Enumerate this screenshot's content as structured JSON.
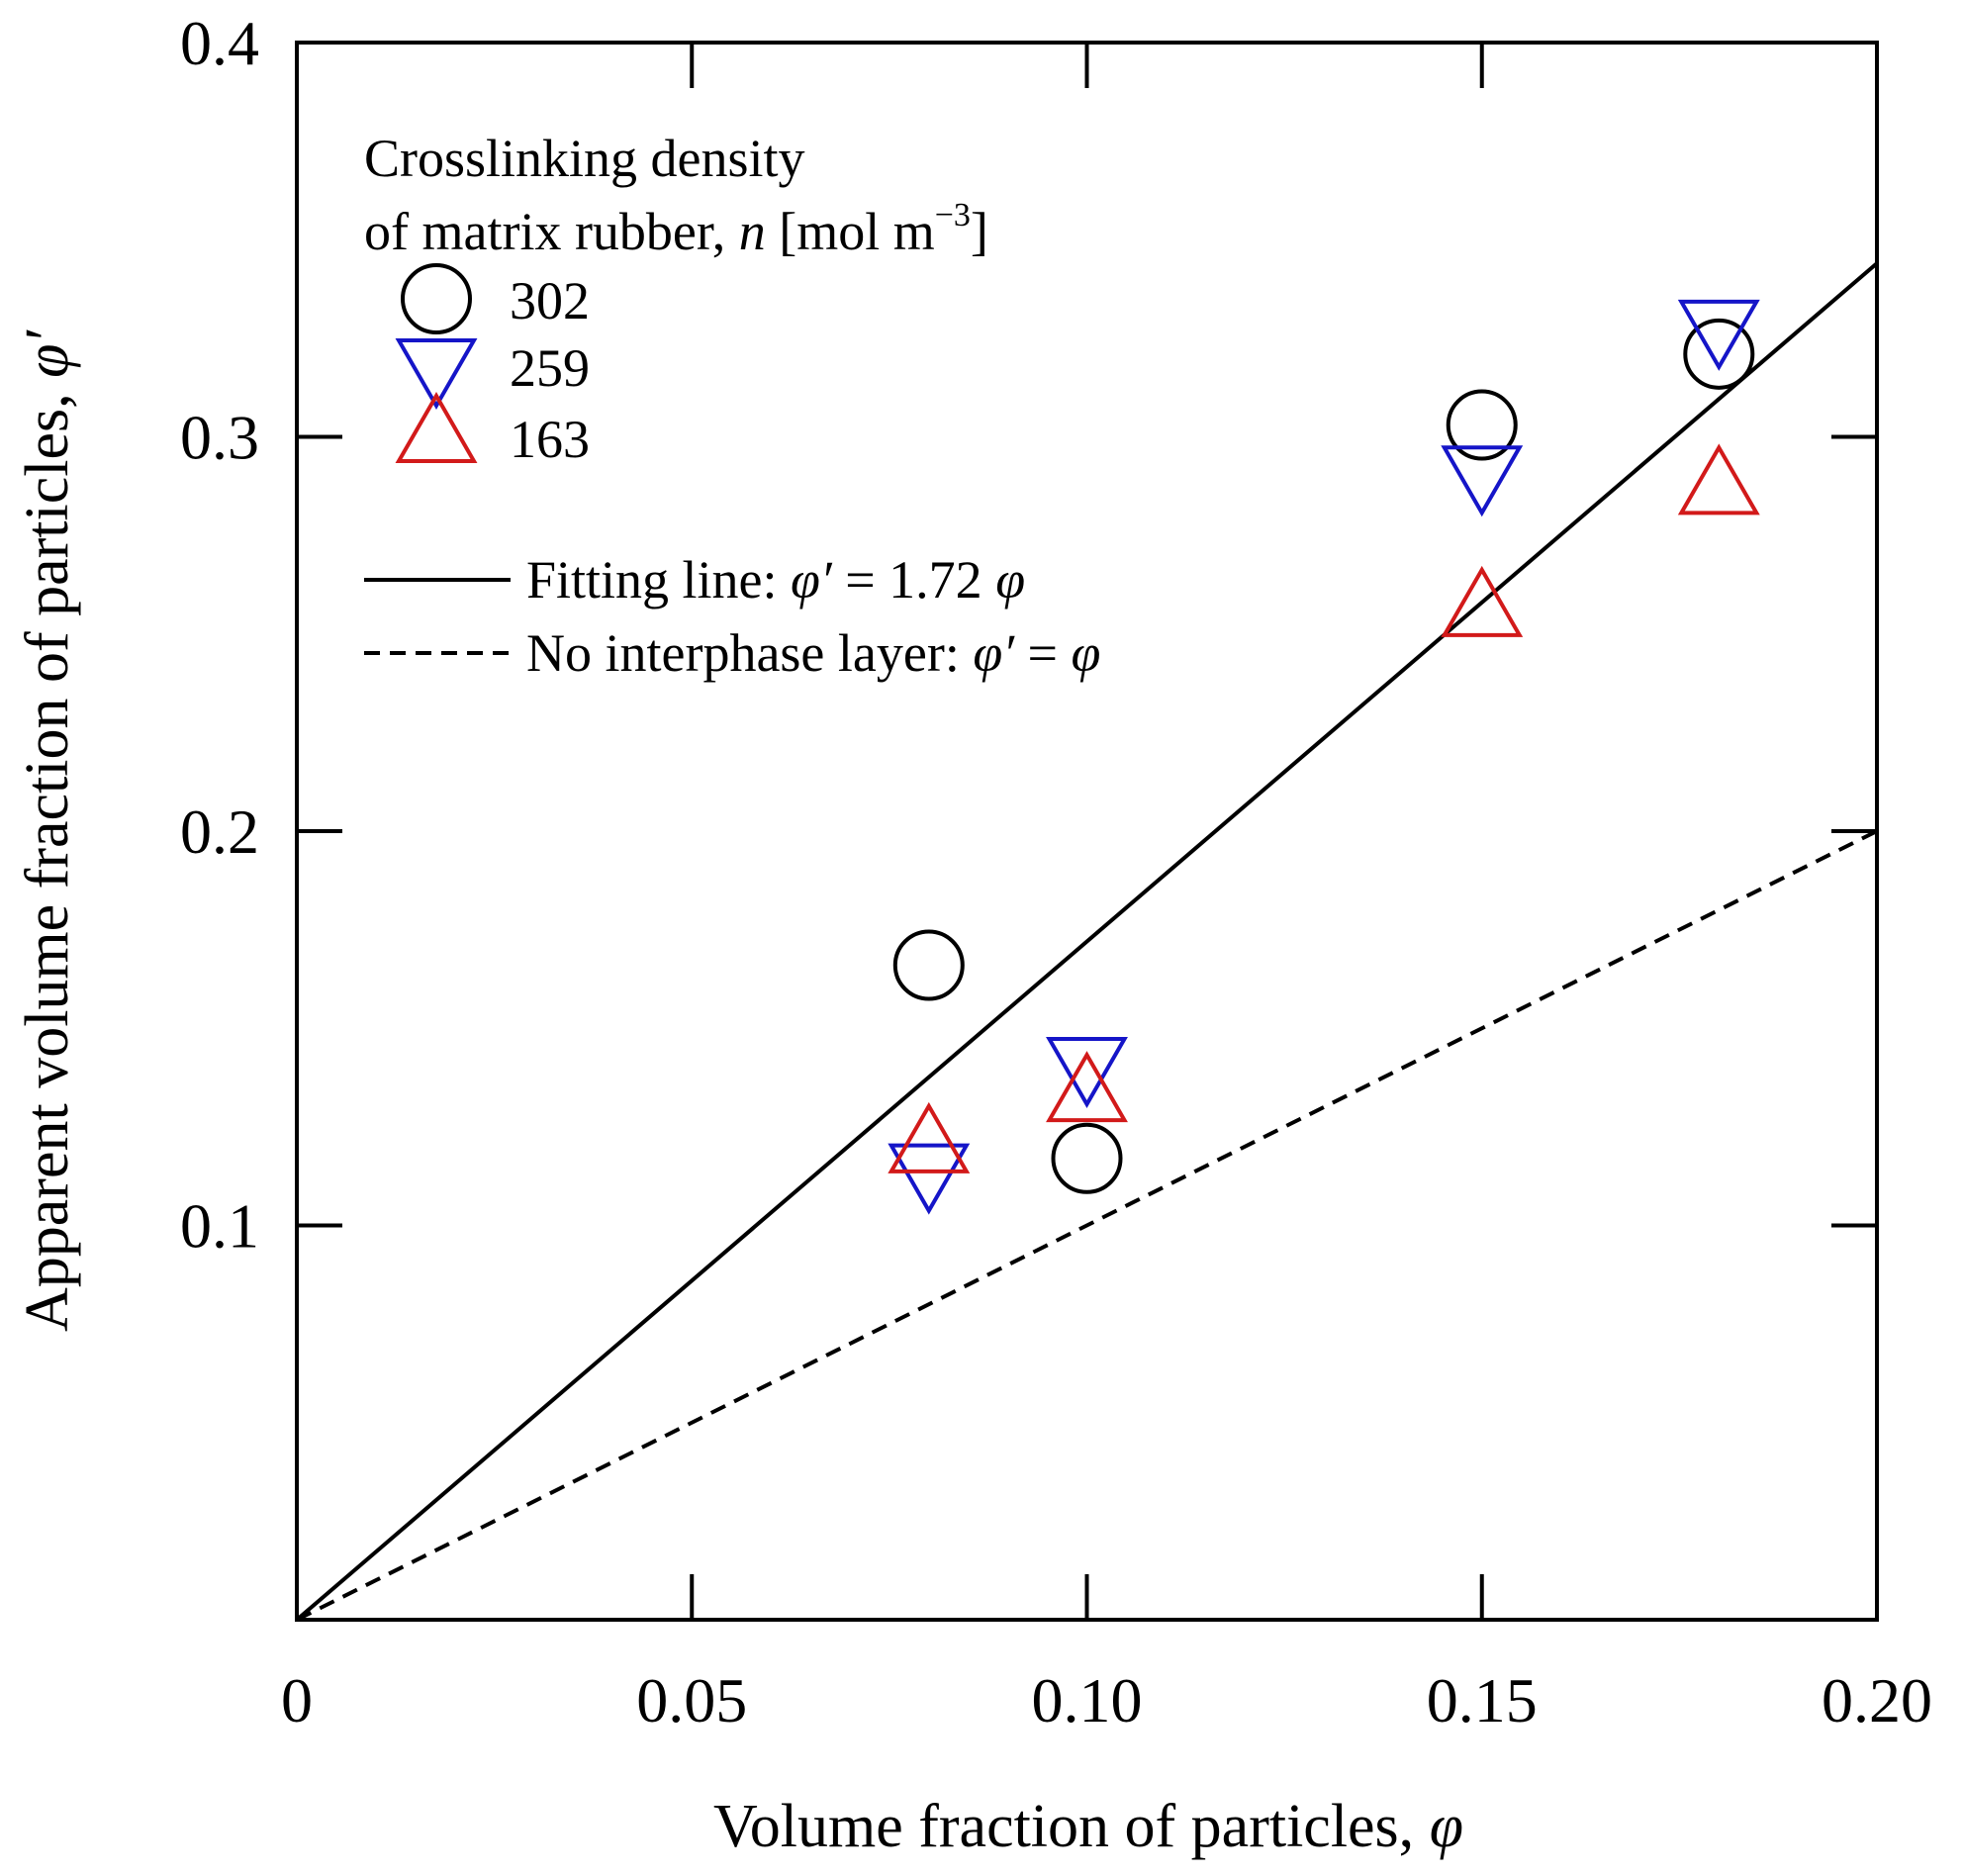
{
  "chart_data": {
    "type": "scatter",
    "xlabel": "Volume fraction of particles, ",
    "xlabel_symbol": "φ",
    "ylabel": "Apparent volume fraction of particles, ",
    "ylabel_symbol": "φ′",
    "xlim": [
      0,
      0.2
    ],
    "ylim": [
      0,
      0.4
    ],
    "x_ticks": [
      0,
      0.05,
      0.1,
      0.15,
      0.2
    ],
    "x_tick_labels": [
      "0",
      "0.05",
      "0.10",
      "0.15",
      "0.20"
    ],
    "y_ticks": [
      0.1,
      0.2,
      0.3,
      0.4
    ],
    "y_tick_labels": [
      "0.1",
      "0.2",
      "0.3",
      "0.4"
    ],
    "grid": false,
    "legend_position": "top-left",
    "legend_title_line1": "Crosslinking density",
    "legend_title_line2_prefix": "of matrix rubber, ",
    "legend_title_line2_var": "n",
    "legend_title_line2_unit": " [mol m",
    "legend_title_line2_exp": "−3",
    "legend_title_line2_close": "]",
    "series": [
      {
        "name": "302",
        "marker": "circle",
        "color": "#000000",
        "points": [
          [
            0.08,
            0.166
          ],
          [
            0.1,
            0.117
          ],
          [
            0.15,
            0.303
          ],
          [
            0.18,
            0.321
          ]
        ]
      },
      {
        "name": "259",
        "marker": "triangle-down",
        "color": "#1515c8",
        "points": [
          [
            0.08,
            0.114
          ],
          [
            0.1,
            0.141
          ],
          [
            0.15,
            0.291
          ],
          [
            0.18,
            0.328
          ]
        ]
      },
      {
        "name": "163",
        "marker": "triangle-up",
        "color": "#d21a1a",
        "points": [
          [
            0.08,
            0.12
          ],
          [
            0.1,
            0.133
          ],
          [
            0.15,
            0.256
          ],
          [
            0.18,
            0.287
          ]
        ]
      }
    ],
    "lines": [
      {
        "name_prefix": "Fitting line: ",
        "name_var1": "φ′",
        "name_mid": " = 1.72 ",
        "name_var2": "φ",
        "slope": 1.72,
        "style": "solid",
        "color": "#000000"
      },
      {
        "name_prefix": "No interphase layer: ",
        "name_var1": "φ′",
        "name_mid": " = ",
        "name_var2": "φ",
        "slope": 1.0,
        "style": "dashed",
        "color": "#000000"
      }
    ]
  }
}
